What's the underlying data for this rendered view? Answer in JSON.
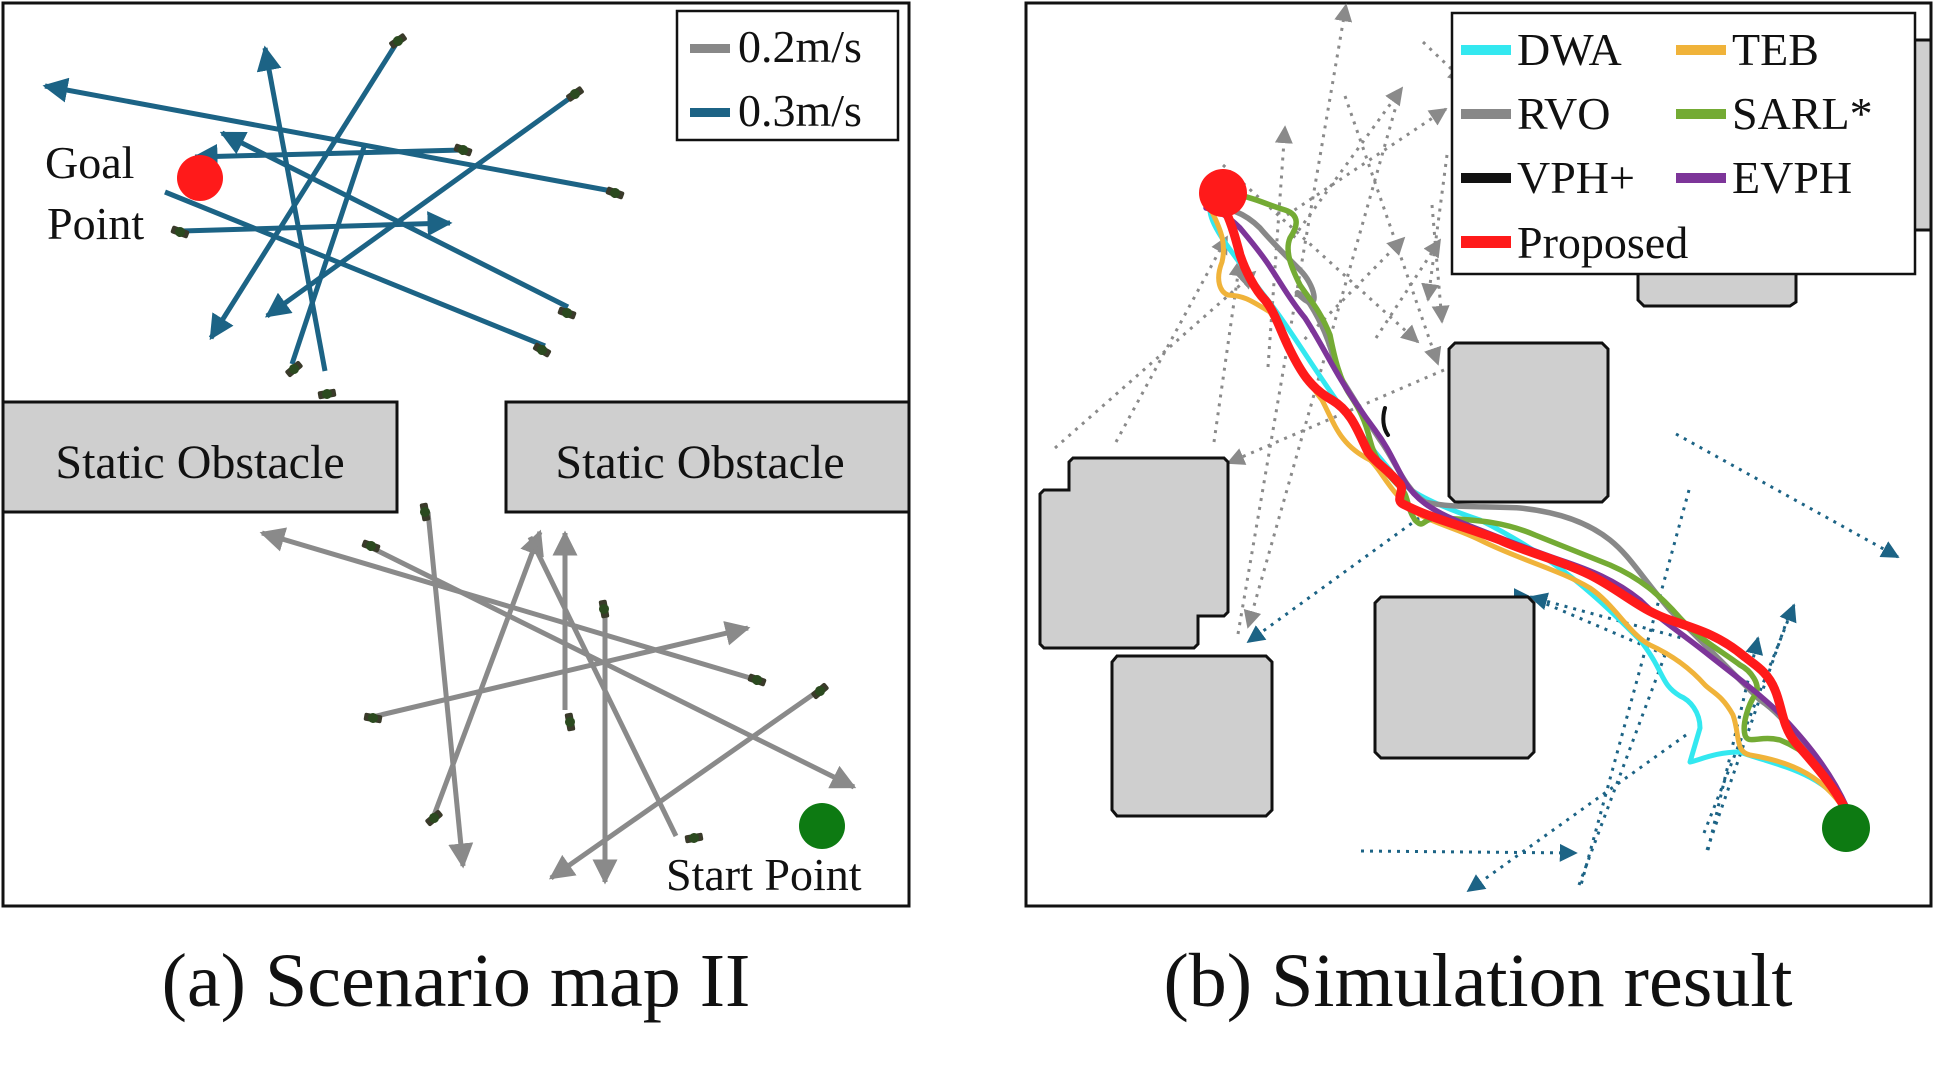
{
  "captions": {
    "a": "(a) Scenario map II",
    "b": "(b) Simulation result"
  },
  "panel_a": {
    "obstacle_label": "Static Obstacle",
    "goal_label_line1": "Goal",
    "goal_label_line2": "Point",
    "start_label": "Start Point",
    "legend": [
      {
        "label": "0.2m/s",
        "color": "#888888"
      },
      {
        "label": "0.3m/s",
        "color": "#1c6385"
      }
    ],
    "goal_color": "#ff1a1a",
    "start_color": "#0d7a12"
  },
  "panel_b": {
    "legend": [
      {
        "label": "DWA",
        "color": "#33e8f0"
      },
      {
        "label": "TEB",
        "color": "#f0b33a"
      },
      {
        "label": "RVO",
        "color": "#888888"
      },
      {
        "label": "SARL*",
        "color": "#74ab34"
      },
      {
        "label": "VPH+",
        "color": "#111111"
      },
      {
        "label": "EVPH",
        "color": "#7d3599"
      },
      {
        "label": "Proposed",
        "color": "#ff1a1a"
      }
    ],
    "goal_color": "#ff1a1a",
    "start_color": "#0d7a12",
    "pedestrian_colors": {
      "slow": "#8a8a8a",
      "fast": "#1c6385"
    }
  }
}
